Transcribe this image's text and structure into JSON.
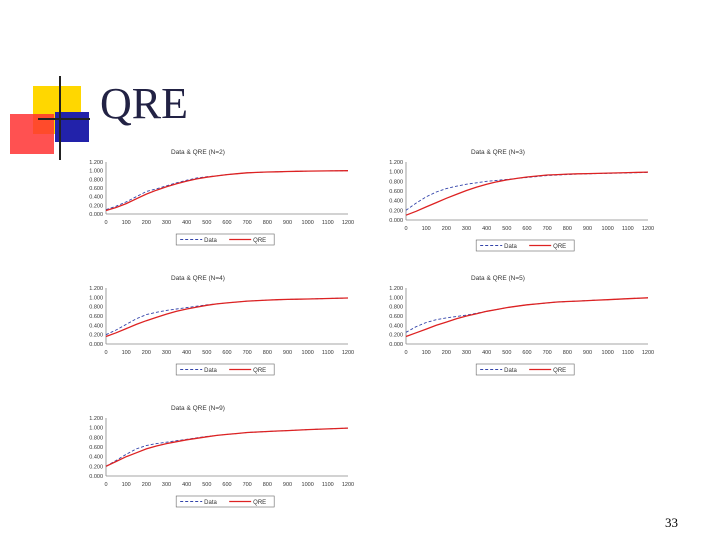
{
  "slide": {
    "title": "QRE",
    "page_number": "33"
  },
  "colors": {
    "data_line": "#3344aa",
    "qre_line": "#dd2222",
    "accent_yellow": "#ffd700",
    "accent_red": "#ff3333",
    "accent_blue": "#2222aa"
  },
  "chart_data": [
    {
      "type": "line",
      "title": "Data & QRE (N=2)",
      "xticks": [
        "0",
        "100",
        "200",
        "300",
        "400",
        "500",
        "600",
        "700",
        "800",
        "900",
        "1000",
        "1100",
        "1200"
      ],
      "yticks": [
        "0.000",
        "0.200",
        "0.400",
        "0.600",
        "0.800",
        "1.000",
        "1.200"
      ],
      "xlim": [
        0,
        1200
      ],
      "ylim": [
        0,
        1.2
      ],
      "series": [
        {
          "name": "Data",
          "x": [
            0,
            50,
            100,
            150,
            200,
            250,
            300,
            350,
            400,
            450,
            500,
            550,
            600,
            650,
            700,
            750,
            800,
            850,
            900,
            950,
            1000,
            1100,
            1200
          ],
          "values": [
            0.1,
            0.18,
            0.28,
            0.4,
            0.52,
            0.58,
            0.65,
            0.72,
            0.78,
            0.83,
            0.86,
            0.88,
            0.91,
            0.93,
            0.95,
            0.96,
            0.97,
            0.975,
            0.98,
            0.985,
            0.99,
            0.995,
            1.0
          ]
        },
        {
          "name": "QRE",
          "x": [
            0,
            50,
            100,
            150,
            200,
            250,
            300,
            350,
            400,
            450,
            500,
            550,
            600,
            650,
            700,
            750,
            800,
            850,
            900,
            950,
            1000,
            1100,
            1200
          ],
          "values": [
            0.08,
            0.15,
            0.24,
            0.35,
            0.46,
            0.55,
            0.63,
            0.7,
            0.76,
            0.81,
            0.85,
            0.88,
            0.91,
            0.93,
            0.95,
            0.96,
            0.97,
            0.975,
            0.98,
            0.985,
            0.99,
            0.995,
            1.0
          ]
        }
      ]
    },
    {
      "type": "line",
      "title": "Data & QRE (N=3)",
      "xticks": [
        "0",
        "100",
        "200",
        "300",
        "400",
        "500",
        "600",
        "700",
        "800",
        "900",
        "1000",
        "1100",
        "1200"
      ],
      "yticks": [
        "0.000",
        "0.200",
        "0.400",
        "0.600",
        "0.800",
        "1.000",
        "1.200"
      ],
      "xlim": [
        0,
        1200
      ],
      "ylim": [
        0,
        1.2
      ],
      "series": [
        {
          "name": "Data",
          "x": [
            0,
            50,
            100,
            150,
            200,
            250,
            300,
            350,
            400,
            450,
            500,
            550,
            600,
            650,
            700,
            750,
            800,
            850,
            900,
            950,
            1000,
            1100,
            1200
          ],
          "values": [
            0.2,
            0.35,
            0.48,
            0.58,
            0.65,
            0.7,
            0.74,
            0.77,
            0.8,
            0.82,
            0.84,
            0.86,
            0.88,
            0.9,
            0.92,
            0.93,
            0.94,
            0.95,
            0.955,
            0.96,
            0.965,
            0.975,
            0.985
          ]
        },
        {
          "name": "QRE",
          "x": [
            0,
            50,
            100,
            150,
            200,
            250,
            300,
            350,
            400,
            450,
            500,
            550,
            600,
            650,
            700,
            750,
            800,
            850,
            900,
            950,
            1000,
            1100,
            1200
          ],
          "values": [
            0.1,
            0.18,
            0.27,
            0.36,
            0.45,
            0.53,
            0.61,
            0.68,
            0.74,
            0.79,
            0.83,
            0.86,
            0.89,
            0.91,
            0.93,
            0.94,
            0.95,
            0.955,
            0.96,
            0.965,
            0.97,
            0.98,
            0.99
          ]
        }
      ]
    },
    {
      "type": "line",
      "title": "Data & QRE (N=4)",
      "xticks": [
        "0",
        "100",
        "200",
        "300",
        "400",
        "500",
        "600",
        "700",
        "800",
        "900",
        "1000",
        "1100",
        "1200"
      ],
      "yticks": [
        "0.000",
        "0.200",
        "0.400",
        "0.600",
        "0.800",
        "1.000",
        "1.200"
      ],
      "xlim": [
        0,
        1200
      ],
      "ylim": [
        0,
        1.2
      ],
      "series": [
        {
          "name": "Data",
          "x": [
            0,
            50,
            100,
            150,
            200,
            250,
            300,
            350,
            400,
            450,
            500,
            550,
            600,
            650,
            700,
            750,
            800,
            850,
            900,
            950,
            1000,
            1100,
            1200
          ],
          "values": [
            0.2,
            0.3,
            0.42,
            0.54,
            0.63,
            0.68,
            0.72,
            0.75,
            0.78,
            0.81,
            0.84,
            0.86,
            0.88,
            0.9,
            0.92,
            0.93,
            0.94,
            0.95,
            0.955,
            0.96,
            0.965,
            0.975,
            0.985
          ]
        },
        {
          "name": "QRE",
          "x": [
            0,
            50,
            100,
            150,
            200,
            250,
            300,
            350,
            400,
            450,
            500,
            550,
            600,
            650,
            700,
            750,
            800,
            850,
            900,
            950,
            1000,
            1100,
            1200
          ],
          "values": [
            0.16,
            0.24,
            0.33,
            0.42,
            0.5,
            0.57,
            0.64,
            0.7,
            0.75,
            0.79,
            0.83,
            0.86,
            0.88,
            0.9,
            0.92,
            0.93,
            0.94,
            0.95,
            0.955,
            0.96,
            0.965,
            0.975,
            0.985
          ]
        }
      ]
    },
    {
      "type": "line",
      "title": "Data & QRE (N=5)",
      "xticks": [
        "0",
        "100",
        "200",
        "300",
        "400",
        "500",
        "600",
        "700",
        "800",
        "900",
        "1000",
        "1100",
        "1200"
      ],
      "yticks": [
        "0.000",
        "0.200",
        "0.400",
        "0.600",
        "0.800",
        "1.000",
        "1.200"
      ],
      "xlim": [
        0,
        1200
      ],
      "ylim": [
        0,
        1.2
      ],
      "series": [
        {
          "name": "Data",
          "x": [
            0,
            50,
            100,
            150,
            200,
            250,
            300,
            350,
            400,
            450,
            500,
            550,
            600,
            650,
            700,
            750,
            800,
            850,
            900,
            950,
            1000,
            1100,
            1200
          ],
          "values": [
            0.25,
            0.37,
            0.46,
            0.52,
            0.56,
            0.59,
            0.62,
            0.66,
            0.7,
            0.74,
            0.78,
            0.81,
            0.84,
            0.86,
            0.88,
            0.9,
            0.91,
            0.92,
            0.93,
            0.94,
            0.95,
            0.97,
            0.99
          ]
        },
        {
          "name": "QRE",
          "x": [
            0,
            50,
            100,
            150,
            200,
            250,
            300,
            350,
            400,
            450,
            500,
            550,
            600,
            650,
            700,
            750,
            800,
            850,
            900,
            950,
            1000,
            1100,
            1200
          ],
          "values": [
            0.16,
            0.24,
            0.32,
            0.4,
            0.47,
            0.54,
            0.6,
            0.65,
            0.7,
            0.74,
            0.78,
            0.81,
            0.84,
            0.86,
            0.88,
            0.9,
            0.91,
            0.92,
            0.93,
            0.94,
            0.95,
            0.97,
            0.99
          ]
        }
      ]
    },
    {
      "type": "line",
      "title": "Data & QRE (N=9)",
      "xticks": [
        "0",
        "100",
        "200",
        "300",
        "400",
        "500",
        "600",
        "700",
        "800",
        "900",
        "1000",
        "1100",
        "1200"
      ],
      "yticks": [
        "0.000",
        "0.200",
        "0.400",
        "0.600",
        "0.800",
        "1.000",
        "1.200"
      ],
      "xlim": [
        0,
        1200
      ],
      "ylim": [
        0,
        1.2
      ],
      "series": [
        {
          "name": "Data",
          "x": [
            0,
            50,
            100,
            150,
            200,
            250,
            300,
            350,
            400,
            450,
            500,
            550,
            600,
            650,
            700,
            750,
            800,
            850,
            900,
            950,
            1000,
            1100,
            1200
          ],
          "values": [
            0.2,
            0.32,
            0.45,
            0.56,
            0.63,
            0.67,
            0.7,
            0.73,
            0.76,
            0.79,
            0.82,
            0.84,
            0.86,
            0.88,
            0.9,
            0.91,
            0.92,
            0.93,
            0.94,
            0.95,
            0.96,
            0.975,
            0.99
          ]
        },
        {
          "name": "QRE",
          "x": [
            0,
            50,
            100,
            150,
            200,
            250,
            300,
            350,
            400,
            450,
            500,
            550,
            600,
            650,
            700,
            750,
            800,
            850,
            900,
            950,
            1000,
            1100,
            1200
          ],
          "values": [
            0.2,
            0.3,
            0.4,
            0.48,
            0.56,
            0.62,
            0.67,
            0.71,
            0.75,
            0.78,
            0.81,
            0.84,
            0.86,
            0.88,
            0.9,
            0.91,
            0.92,
            0.93,
            0.94,
            0.95,
            0.96,
            0.975,
            0.99
          ]
        }
      ]
    }
  ]
}
